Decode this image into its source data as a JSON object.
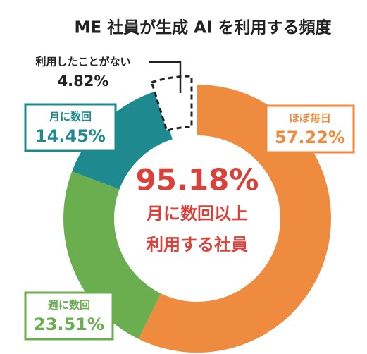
{
  "chart_data": {
    "type": "donut",
    "title": "ME 社員が生成 AI を利用する頻度",
    "categories": [
      "ほぼ毎日",
      "週に数回",
      "月に数回",
      "利用したことがない"
    ],
    "values": [
      57.22,
      23.51,
      14.45,
      4.82
    ],
    "value_labels": [
      "57.22%",
      "23.51%",
      "14.45%",
      "4.82%"
    ],
    "colors": [
      "#ee8b3f",
      "#6aae4f",
      "#1e8a8f",
      "#ffffff"
    ],
    "annotation": {
      "value": 95.18,
      "label": "95.18%",
      "lines": [
        "月に数回以上",
        "利用する社員"
      ]
    }
  }
}
